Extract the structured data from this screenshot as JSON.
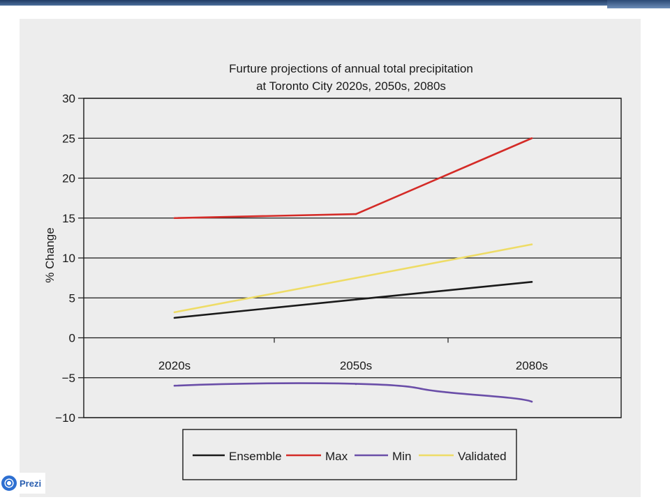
{
  "branding": {
    "label": "Prezi"
  },
  "chart_data": {
    "type": "line",
    "title_line1": "Furture projections of annual total precipitation",
    "title_line2": "at Toronto City 2020s, 2050s, 2080s",
    "ylabel": "% Change",
    "xlabel": "",
    "categories": [
      "2020s",
      "2050s",
      "2080s"
    ],
    "ylim": [
      -10,
      30
    ],
    "yticks": [
      30,
      25,
      20,
      15,
      10,
      5,
      0,
      -5,
      -10
    ],
    "ytick_labels": [
      "30",
      "25",
      "20",
      "15",
      "10",
      "5",
      "0",
      "−5",
      "−10"
    ],
    "grid": true,
    "legend_position": "bottom",
    "series": [
      {
        "name": "Ensemble",
        "color": "#1a1a1a",
        "values": [
          2.5,
          4.8,
          7.0
        ]
      },
      {
        "name": "Max",
        "color": "#d42b27",
        "values": [
          15.0,
          15.5,
          25.0
        ]
      },
      {
        "name": "Min",
        "color": "#6a4ea8",
        "values": [
          -6.0,
          -5.8,
          -8.0
        ]
      },
      {
        "name": "Validated",
        "color": "#eedc66",
        "values": [
          3.2,
          7.5,
          11.7
        ]
      }
    ]
  }
}
